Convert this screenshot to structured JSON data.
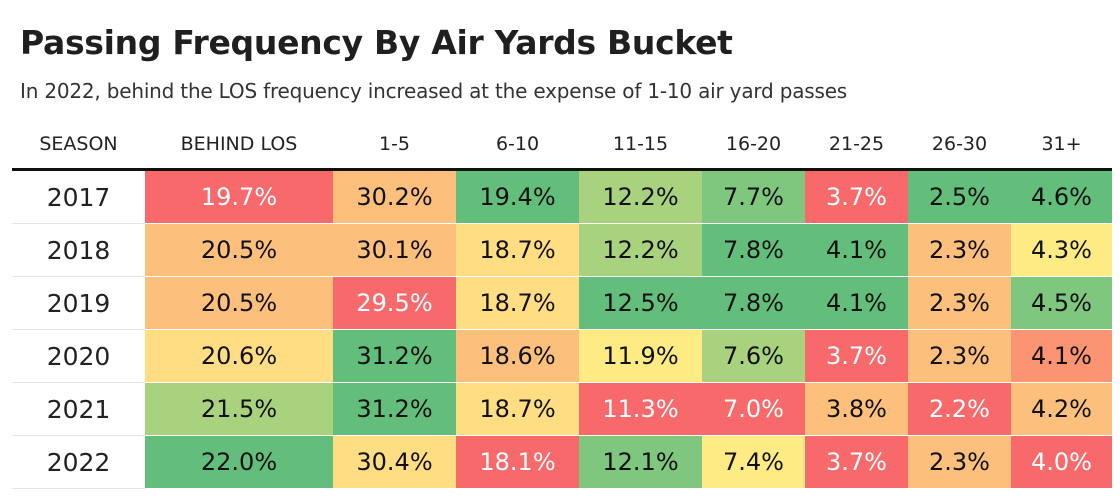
{
  "title": "Passing Frequency By Air Yards Bucket",
  "subtitle": "In 2022, behind the LOS frequency increased at the expense of 1-10 air yard passes",
  "colors": {
    "dark_green": "#63be7b",
    "green": "#7fc67e",
    "light_green": "#a9d27f",
    "yellow": "#ffeb84",
    "light_orange": "#ffdd82",
    "orange": "#fdc07c",
    "salmon": "#fa9473",
    "red": "#f8696b",
    "text_dark": "#111111",
    "text_light": "#ffffff"
  },
  "chart_data": {
    "type": "table",
    "columns": [
      "SEASON",
      "BEHIND LOS",
      "1-5",
      "6-10",
      "11-15",
      "16-20",
      "21-25",
      "26-30",
      "31+"
    ],
    "rows": [
      {
        "season": "2017",
        "values": [
          "19.7%",
          "30.2%",
          "19.4%",
          "12.2%",
          "7.7%",
          "3.7%",
          "2.5%",
          "4.6%"
        ],
        "colors": [
          "red",
          "orange",
          "dark_green",
          "light_green",
          "green",
          "red",
          "dark_green",
          "dark_green"
        ]
      },
      {
        "season": "2018",
        "values": [
          "20.5%",
          "30.1%",
          "18.7%",
          "12.2%",
          "7.8%",
          "4.1%",
          "2.3%",
          "4.3%"
        ],
        "colors": [
          "orange",
          "orange",
          "light_orange",
          "light_green",
          "dark_green",
          "dark_green",
          "orange",
          "yellow"
        ]
      },
      {
        "season": "2019",
        "values": [
          "20.5%",
          "29.5%",
          "18.7%",
          "12.5%",
          "7.8%",
          "4.1%",
          "2.3%",
          "4.5%"
        ],
        "colors": [
          "orange",
          "red",
          "light_orange",
          "dark_green",
          "dark_green",
          "dark_green",
          "orange",
          "green"
        ]
      },
      {
        "season": "2020",
        "values": [
          "20.6%",
          "31.2%",
          "18.6%",
          "11.9%",
          "7.6%",
          "3.7%",
          "2.3%",
          "4.1%"
        ],
        "colors": [
          "light_orange",
          "dark_green",
          "orange",
          "yellow",
          "light_green",
          "red",
          "orange",
          "salmon"
        ]
      },
      {
        "season": "2021",
        "values": [
          "21.5%",
          "31.2%",
          "18.7%",
          "11.3%",
          "7.0%",
          "3.8%",
          "2.2%",
          "4.2%"
        ],
        "colors": [
          "light_green",
          "dark_green",
          "light_orange",
          "red",
          "red",
          "orange",
          "red",
          "orange"
        ]
      },
      {
        "season": "2022",
        "values": [
          "22.0%",
          "30.4%",
          "18.1%",
          "12.1%",
          "7.4%",
          "3.7%",
          "2.3%",
          "4.0%"
        ],
        "colors": [
          "dark_green",
          "light_orange",
          "red",
          "green",
          "yellow",
          "red",
          "orange",
          "red"
        ]
      }
    ]
  }
}
